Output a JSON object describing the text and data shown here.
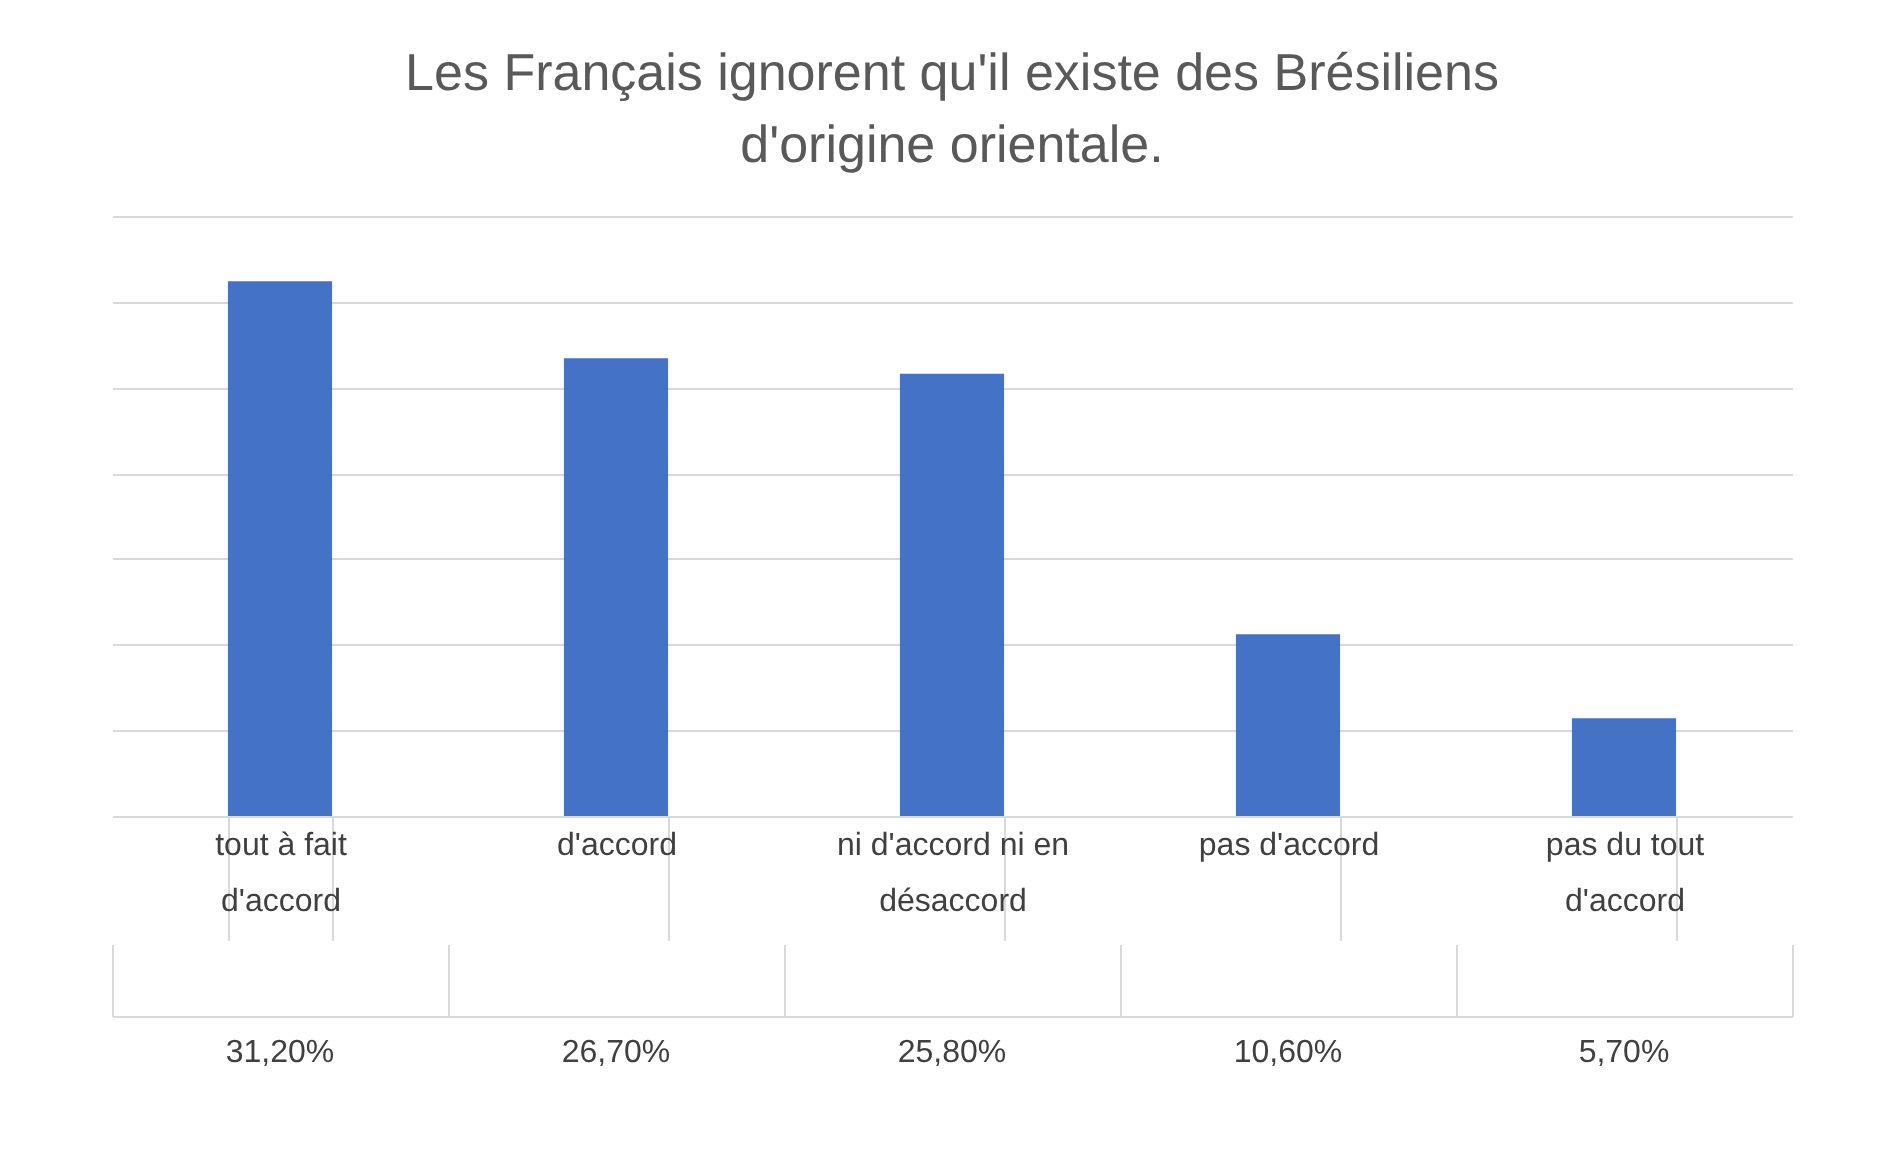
{
  "chart_data": {
    "type": "bar",
    "title": "Les Français ignorent qu'il existe des Brésiliens d'origine orientale.",
    "categories": [
      "tout à fait d'accord",
      "d'accord",
      "ni d'accord ni en désaccord",
      "pas d'accord",
      "pas du tout d'accord"
    ],
    "values": [
      31.2,
      26.7,
      25.8,
      10.6,
      5.7
    ],
    "value_labels": [
      "31,20%",
      "26,70%",
      "25,80%",
      "10,60%",
      "5,70%"
    ],
    "color": "#4472c4",
    "grid": "y",
    "tick_labels": "x"
  }
}
